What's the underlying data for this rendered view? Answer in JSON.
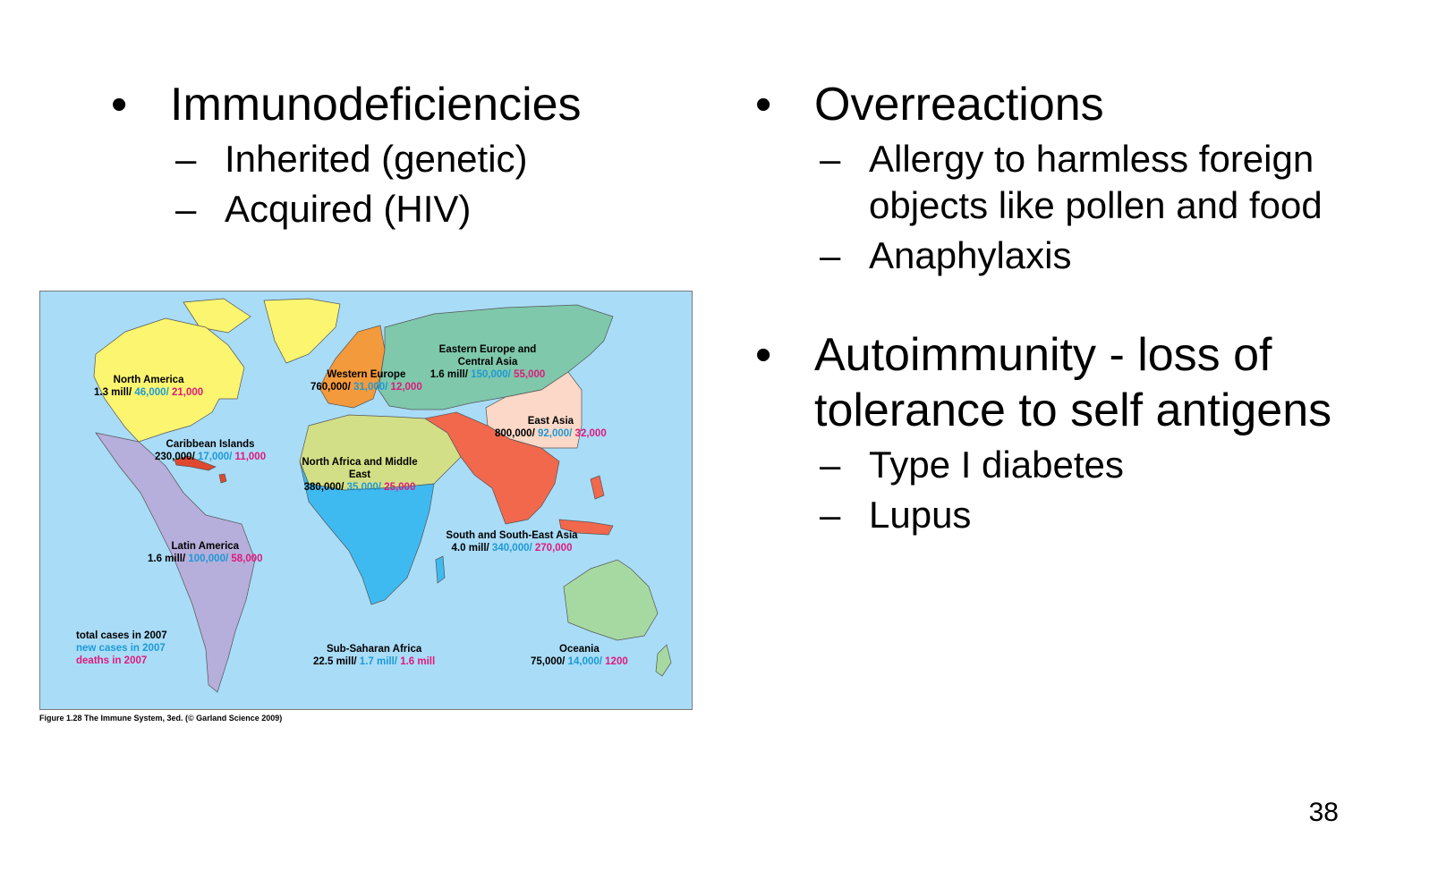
{
  "left": {
    "heading": "Immunodeficiencies",
    "items": [
      "Inherited (genetic)",
      "Acquired (HIV)"
    ]
  },
  "right": {
    "overreactions": {
      "heading": "Overreactions",
      "items": [
        "Allergy to harmless foreign objects like pollen and food",
        "Anaphylaxis"
      ]
    },
    "autoimmunity": {
      "heading": "Autoimmunity - loss of tolerance to self antigens",
      "items": [
        "Type I diabetes",
        "Lupus"
      ]
    }
  },
  "bullet_glyph": "•",
  "dash_glyph": "–",
  "map": {
    "regions": [
      {
        "name": "North America",
        "total": "1.3 mill/",
        "new": "46,000/",
        "deaths": "21,000",
        "color": "#fbf56f"
      },
      {
        "name": "Caribbean Islands",
        "total": "230,000/",
        "new": "17,000/",
        "deaths": "11,000",
        "color": "#e0482d"
      },
      {
        "name": "Latin America",
        "total": "1.6 mill/",
        "new": "100,000/",
        "deaths": "58,000",
        "color": "#b6aedb"
      },
      {
        "name": "Western Europe",
        "total": "760,000/",
        "new": "31,000/",
        "deaths": "12,000",
        "color": "#f39a3c"
      },
      {
        "name": "Eastern Europe and Central Asia",
        "total": "1.6 mill/",
        "new": "150,000/",
        "deaths": "55,000",
        "color": "#7fc8ab"
      },
      {
        "name": "East Asia",
        "total": "800,000/",
        "new": "92,000/",
        "deaths": "32,000",
        "color": "#fbd8c7"
      },
      {
        "name": "North Africa and Middle East",
        "total": "380,000/",
        "new": "35,000/",
        "deaths": "25,000",
        "color": "#d3df86"
      },
      {
        "name": "South and South-East Asia",
        "total": "4.0 mill/",
        "new": "340,000/",
        "deaths": "270,000",
        "color": "#f1684d"
      },
      {
        "name": "Sub-Saharan Africa",
        "total": "22.5 mill/",
        "new": "1.7 mill/",
        "deaths": "1.6 mill",
        "color": "#3ebaf0"
      },
      {
        "name": "Oceania",
        "total": "75,000/",
        "new": "14,000/",
        "deaths": "1200",
        "color": "#a6d9a1"
      }
    ],
    "legend": {
      "total": "total cases in 2007",
      "new": "new cases in 2007",
      "deaths": "deaths in 2007"
    },
    "ocean_color": "#a9dcf7"
  },
  "figure_caption": "Figure 1.28 The Immune System, 3ed. (© Garland Science 2009)",
  "page_number": "38"
}
